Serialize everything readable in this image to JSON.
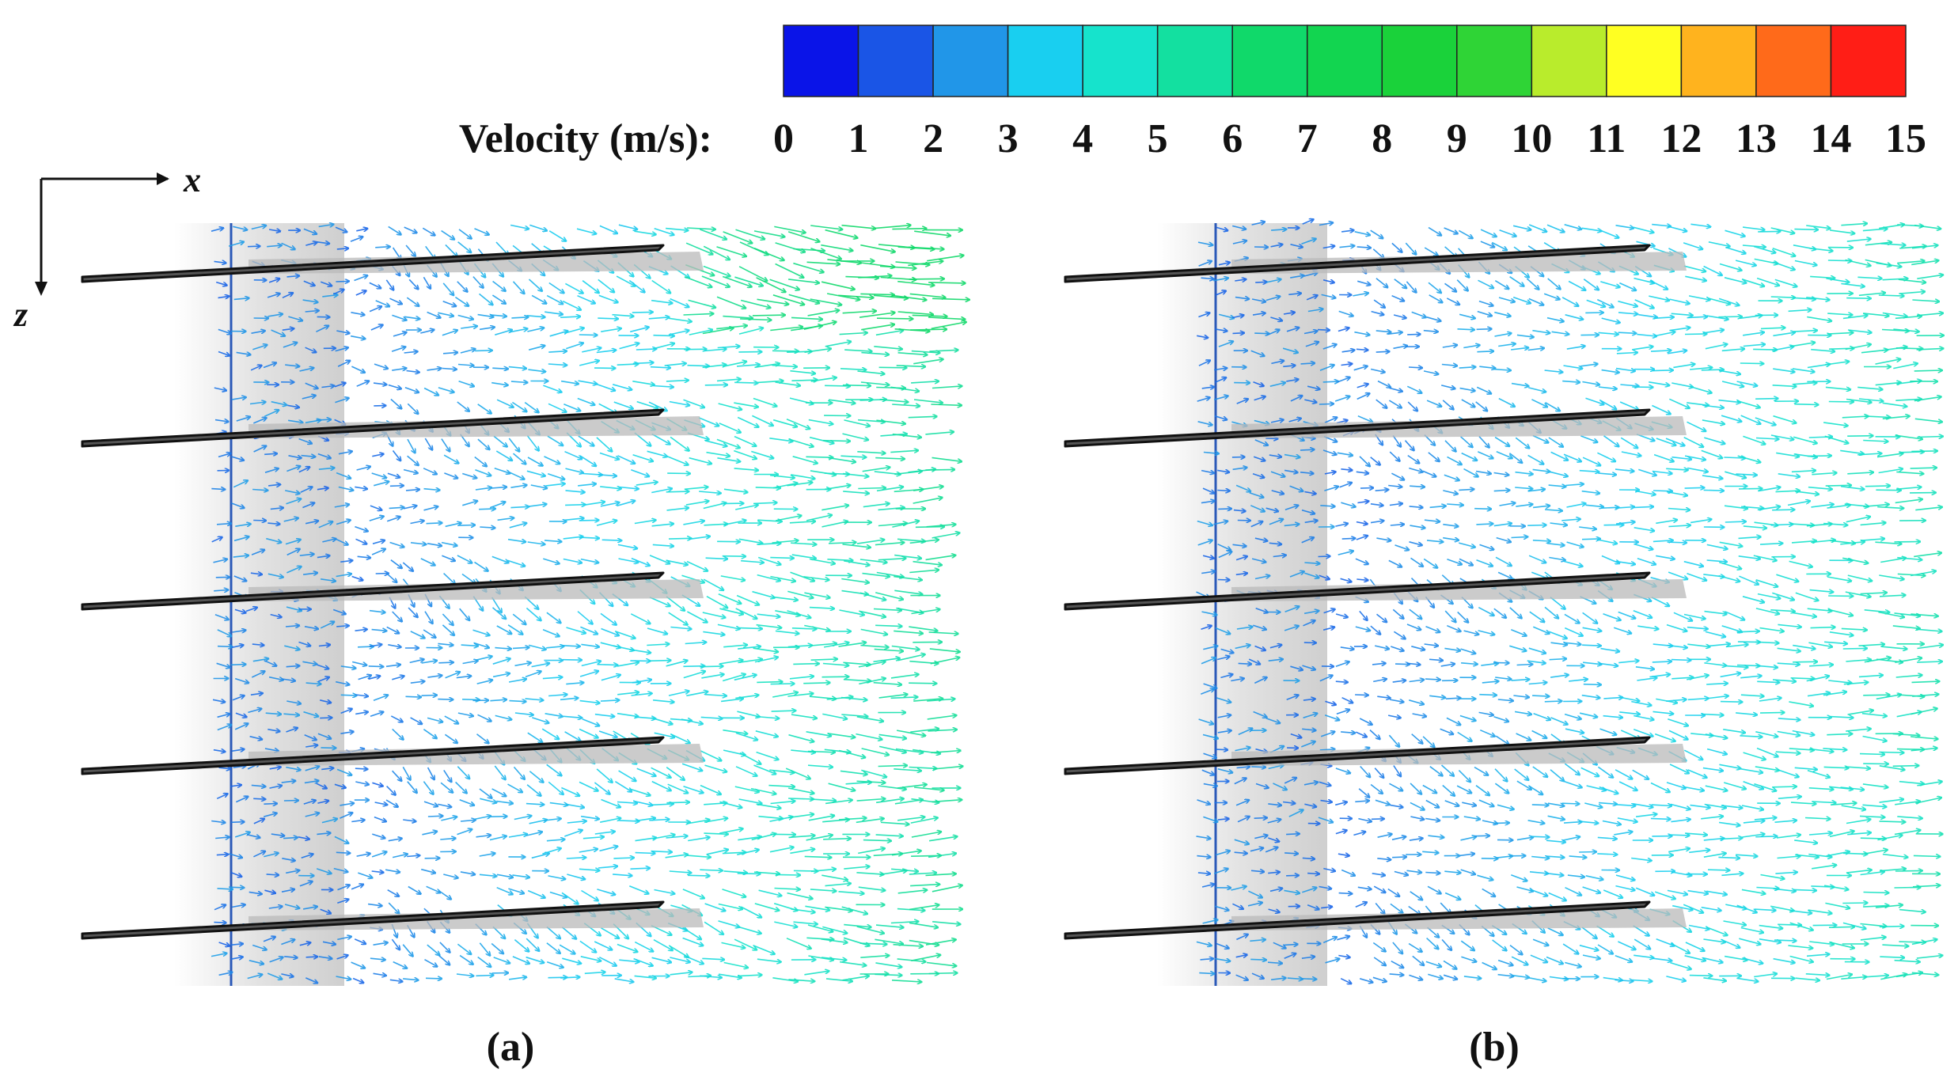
{
  "colorbar": {
    "label": "Velocity (m/s):",
    "ticks": [
      "0",
      "1",
      "2",
      "3",
      "4",
      "5",
      "6",
      "7",
      "8",
      "9",
      "10",
      "11",
      "12",
      "13",
      "14",
      "15"
    ],
    "colors": [
      "#0a14e8",
      "#1a55e6",
      "#2196e8",
      "#19cff0",
      "#16e3cc",
      "#13e0a0",
      "#10d96a",
      "#12d550",
      "#1ad23a",
      "#2fd436",
      "#b9ec2c",
      "#ffff22",
      "#ffb31e",
      "#ff6a1a",
      "#ff1e16"
    ]
  },
  "axes": {
    "x_label": "x",
    "z_label": "z"
  },
  "panels": [
    {
      "label": "(a)",
      "blades": 5
    },
    {
      "label": "(b)",
      "blades": 5
    }
  ]
}
